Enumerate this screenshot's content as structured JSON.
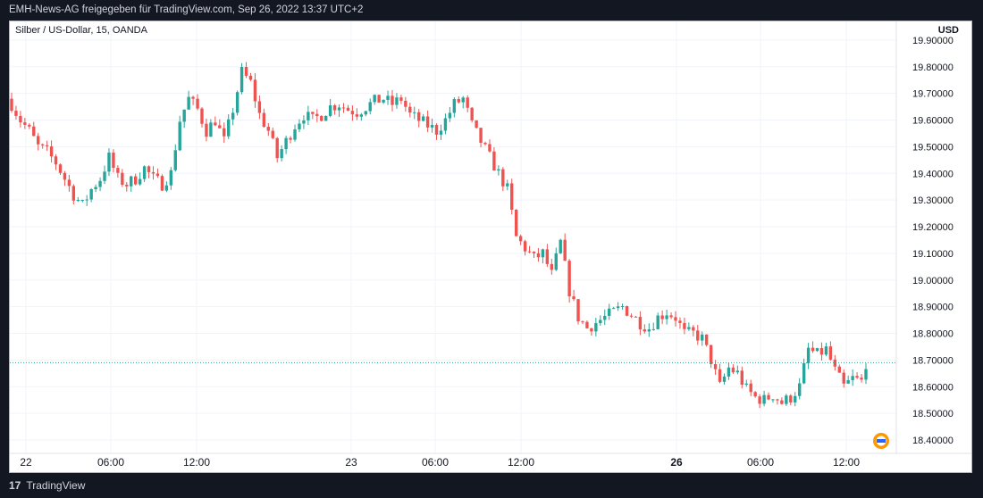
{
  "header": {
    "attribution": "EMH-News-AG freigegeben für TradingView.com, Sep 26, 2022 13:37 UTC+2"
  },
  "legend": {
    "symbol": "Silber / US-Dollar, 15, OANDA"
  },
  "price_axis": {
    "currency": "USD"
  },
  "footer": {
    "brand": "TradingView",
    "logo_glyph": "17"
  },
  "colors": {
    "up": "#26a69a",
    "down": "#ef5350",
    "grid": "#f0f3fa",
    "last_price_line": "#26a69a",
    "background": "#ffffff"
  },
  "chart_data": {
    "type": "candlestick",
    "title": "Silber / US-Dollar, 15, OANDA",
    "ylabel": "USD",
    "ylim": [
      18.35,
      19.97
    ],
    "y_ticks": [
      "19.90000",
      "19.80000",
      "19.70000",
      "19.60000",
      "19.50000",
      "19.40000",
      "19.30000",
      "19.20000",
      "19.10000",
      "19.00000",
      "18.90000",
      "18.80000",
      "18.70000",
      "18.60000",
      "18.50000",
      "18.40000"
    ],
    "x_ticks": [
      {
        "label": "22",
        "bold": false
      },
      {
        "label": "06:00",
        "bold": false
      },
      {
        "label": "12:00",
        "bold": false
      },
      {
        "label": "23",
        "bold": false
      },
      {
        "label": "06:00",
        "bold": false
      },
      {
        "label": "12:00",
        "bold": false
      },
      {
        "label": "26",
        "bold": true
      },
      {
        "label": "06:00",
        "bold": false
      },
      {
        "label": "12:00",
        "bold": false
      }
    ],
    "last_price": 18.69,
    "close_path": [
      [
        0,
        19.66
      ],
      [
        2,
        19.6
      ],
      [
        4,
        19.56
      ],
      [
        6,
        19.5
      ],
      [
        8,
        19.48
      ],
      [
        10,
        19.44
      ],
      [
        12,
        19.38
      ],
      [
        14,
        19.32
      ],
      [
        16,
        19.28
      ],
      [
        18,
        19.34
      ],
      [
        20,
        19.38
      ],
      [
        22,
        19.46
      ],
      [
        24,
        19.38
      ],
      [
        26,
        19.36
      ],
      [
        28,
        19.38
      ],
      [
        30,
        19.42
      ],
      [
        32,
        19.38
      ],
      [
        34,
        19.36
      ],
      [
        36,
        19.4
      ],
      [
        38,
        19.6
      ],
      [
        40,
        19.68
      ],
      [
        42,
        19.64
      ],
      [
        44,
        19.56
      ],
      [
        46,
        19.6
      ],
      [
        48,
        19.52
      ],
      [
        50,
        19.64
      ],
      [
        52,
        19.78
      ],
      [
        54,
        19.74
      ],
      [
        56,
        19.62
      ],
      [
        58,
        19.56
      ],
      [
        60,
        19.46
      ],
      [
        62,
        19.52
      ],
      [
        64,
        19.58
      ],
      [
        66,
        19.62
      ],
      [
        68,
        19.6
      ],
      [
        70,
        19.62
      ],
      [
        72,
        19.65
      ],
      [
        74,
        19.66
      ],
      [
        76,
        19.64
      ],
      [
        78,
        19.63
      ],
      [
        80,
        19.65
      ],
      [
        82,
        19.67
      ],
      [
        84,
        19.68
      ],
      [
        86,
        19.66
      ],
      [
        88,
        19.68
      ],
      [
        90,
        19.62
      ],
      [
        92,
        19.6
      ],
      [
        94,
        19.58
      ],
      [
        96,
        19.56
      ],
      [
        98,
        19.6
      ],
      [
        100,
        19.66
      ],
      [
        102,
        19.68
      ],
      [
        104,
        19.58
      ],
      [
        106,
        19.52
      ],
      [
        108,
        19.46
      ],
      [
        110,
        19.4
      ],
      [
        112,
        19.34
      ],
      [
        114,
        19.16
      ],
      [
        116,
        19.12
      ],
      [
        118,
        19.08
      ],
      [
        120,
        19.1
      ],
      [
        122,
        19.02
      ],
      [
        124,
        19.14
      ],
      [
        126,
        18.96
      ],
      [
        128,
        18.86
      ],
      [
        130,
        18.82
      ],
      [
        132,
        18.84
      ],
      [
        134,
        18.86
      ],
      [
        136,
        18.88
      ],
      [
        138,
        18.9
      ],
      [
        140,
        18.87
      ],
      [
        142,
        18.84
      ],
      [
        144,
        18.82
      ],
      [
        146,
        18.86
      ],
      [
        148,
        18.88
      ],
      [
        150,
        18.86
      ],
      [
        152,
        18.8
      ],
      [
        154,
        18.8
      ],
      [
        156,
        18.78
      ],
      [
        158,
        18.7
      ],
      [
        160,
        18.6
      ],
      [
        162,
        18.67
      ],
      [
        164,
        18.65
      ],
      [
        166,
        18.59
      ],
      [
        168,
        18.56
      ],
      [
        170,
        18.55
      ],
      [
        172,
        18.57
      ],
      [
        174,
        18.54
      ],
      [
        176,
        18.56
      ],
      [
        178,
        18.6
      ],
      [
        180,
        18.74
      ],
      [
        182,
        18.72
      ],
      [
        184,
        18.74
      ],
      [
        186,
        18.66
      ],
      [
        188,
        18.6
      ],
      [
        190,
        18.63
      ],
      [
        192,
        18.62
      ],
      [
        193,
        18.69
      ]
    ]
  }
}
